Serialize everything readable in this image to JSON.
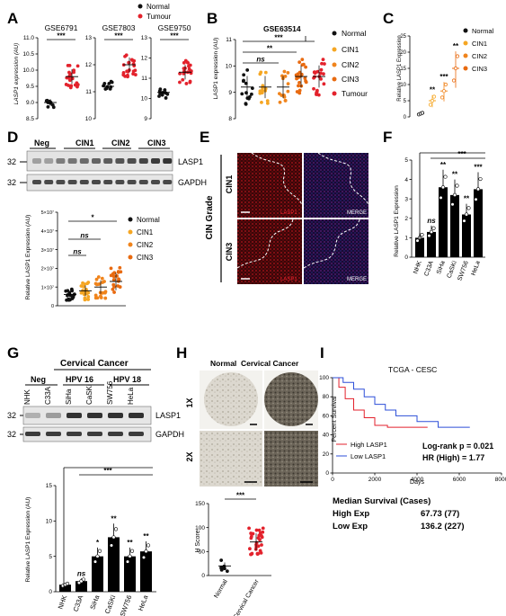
{
  "figure": {
    "panels": {
      "A": {
        "letter": "A",
        "legend": [
          "Normal",
          "Tumour"
        ],
        "ylabel": "LASP1 expression (AU)"
      },
      "B": {
        "letter": "B",
        "title": "GSE63514",
        "ylabel": "LASP1 expression (AU)",
        "legend": [
          "Normal",
          "CIN1",
          "CIN2",
          "CIN3",
          "Tumour"
        ],
        "sig": [
          "***",
          "**",
          "ns"
        ]
      },
      "C": {
        "letter": "C",
        "ylabel": "Relative LASP1 Expression",
        "legend": [
          "Normal",
          "CIN1",
          "CIN2",
          "CIN3"
        ],
        "sig": [
          "**",
          "***",
          "**"
        ]
      },
      "D": {
        "letter": "D",
        "lanes": [
          "Neg",
          "CIN1",
          "CIN2",
          "CIN3"
        ],
        "bands": [
          "LASP1",
          "GAPDH"
        ],
        "mw": [
          "32",
          "32"
        ],
        "ylabel": "Relative LASP1 Expression (AU)",
        "legend": [
          "Normal",
          "CIN1",
          "CIN2",
          "CIN3"
        ],
        "sig": [
          "*",
          "ns",
          "ns"
        ]
      },
      "E": {
        "letter": "E",
        "axis": "CIN Grade",
        "rows": [
          "CIN1",
          "CIN3"
        ],
        "labels": [
          "LASP1",
          "MERGE",
          "LASP1",
          "MERGE"
        ]
      },
      "F": {
        "letter": "F",
        "ylabel": "Relative LASP1 Expression",
        "sig": [
          "ns",
          "**",
          "**",
          "**",
          "**",
          "***",
          "***"
        ]
      },
      "G": {
        "letter": "G",
        "header": "Cervical Cancer",
        "groups": [
          "Neg",
          "HPV 16",
          "HPV 18"
        ],
        "lanes": [
          "NHK",
          "C33A",
          "SiHa",
          "CaSKi",
          "SW756",
          "HeLa"
        ],
        "bands": [
          "LASP1",
          "GAPDH"
        ],
        "mw": [
          "32",
          "32"
        ],
        "ylabel": "Relative LASP1 Expression (AU)",
        "sig": [
          "ns",
          "*",
          "**",
          "**",
          "**",
          "***"
        ]
      },
      "H": {
        "letter": "H",
        "cols": [
          "Normal",
          "Cervical Cancer"
        ],
        "rows": [
          "1X",
          "2X"
        ],
        "ylabel": "H Score",
        "sig": "***",
        "xlabels": [
          "Normal",
          "Cervical Cancer"
        ]
      },
      "I": {
        "letter": "I",
        "title": "TCGA - CESC",
        "ylabel": "Percent Survival",
        "xlabel": "Days",
        "legend": [
          "High LASP1",
          "Low LASP1"
        ],
        "stats": [
          "Log-rank p = 0.021",
          "HR (High) = 1.77"
        ],
        "median_title": "Median Survival (Cases)",
        "median_rows": [
          {
            "label": "High Exp",
            "value": "67.73 (77)"
          },
          {
            "label": "Low Exp",
            "value": "136.2 (227)"
          }
        ]
      }
    }
  },
  "chart_data": [
    {
      "type": "scatter",
      "subplot": "A-GSE6791",
      "title": "GSE6791",
      "ylim": [
        8.5,
        11
      ],
      "yticks": [
        "8.5",
        "9.0",
        "9.5",
        "10.0",
        "10.5",
        "11.0"
      ],
      "series": [
        {
          "name": "Normal",
          "mean": 9.0
        },
        {
          "name": "Tumour",
          "mean": 9.8
        }
      ],
      "sig": "***"
    },
    {
      "type": "scatter",
      "subplot": "A-GSE7803",
      "title": "GSE7803",
      "ylim": [
        10,
        13
      ],
      "yticks": [
        "10",
        "11",
        "12",
        "13"
      ],
      "series": [
        {
          "name": "Normal",
          "mean": 11.2
        },
        {
          "name": "Tumour",
          "mean": 12.0
        }
      ],
      "sig": "***"
    },
    {
      "type": "scatter",
      "subplot": "A-GSE9750",
      "title": "GSE9750",
      "ylim": [
        9,
        13
      ],
      "yticks": [
        "9",
        "10",
        "11",
        "12",
        "13"
      ],
      "series": [
        {
          "name": "Normal",
          "mean": 10.3
        },
        {
          "name": "Tumour",
          "mean": 11.3
        }
      ],
      "sig": "***"
    },
    {
      "type": "scatter",
      "subplot": "B",
      "title": "GSE63514",
      "ylim": [
        8,
        11
      ],
      "yticks": [
        "8",
        "9",
        "10",
        "11"
      ],
      "categories": [
        "Normal",
        "CIN1",
        "CIN2",
        "CIN3",
        "Tumour"
      ],
      "values": [
        9.2,
        9.2,
        9.2,
        9.6,
        9.6
      ]
    },
    {
      "type": "bar",
      "subplot": "C",
      "ylim": [
        0,
        25
      ],
      "yticks": [
        "0",
        "5",
        "10",
        "15",
        "20",
        "25"
      ],
      "categories": [
        "Normal",
        "CIN1",
        "CIN2",
        "CIN3"
      ],
      "values": [
        1,
        5,
        8,
        15
      ]
    },
    {
      "type": "scatter",
      "subplot": "D",
      "ylim": [
        0,
        50000000
      ],
      "yticks": [
        "0",
        "1×10⁷",
        "2×10⁷",
        "3×10⁷",
        "4×10⁷",
        "5×10⁷"
      ],
      "categories": [
        "Normal",
        "CIN1",
        "CIN2",
        "CIN3"
      ],
      "values": [
        6000000,
        8000000,
        10000000,
        13000000
      ]
    },
    {
      "type": "bar",
      "subplot": "F",
      "ylim": [
        0,
        5
      ],
      "yticks": [
        "0",
        "1",
        "2",
        "3",
        "4",
        "5"
      ],
      "categories": [
        "NHK",
        "C33A",
        "SiHa",
        "CaSKi",
        "SW756",
        "HeLa"
      ],
      "values": [
        1.0,
        1.3,
        3.6,
        3.2,
        2.2,
        3.5
      ]
    },
    {
      "type": "bar",
      "subplot": "G",
      "ylim": [
        0,
        15
      ],
      "yticks": [
        "0",
        "5",
        "10",
        "15"
      ],
      "categories": [
        "NHK",
        "C33A",
        "SiHa",
        "CaSKi",
        "SW756",
        "HeLa"
      ],
      "values": [
        1.0,
        1.5,
        5.0,
        7.7,
        5.0,
        5.7
      ]
    },
    {
      "type": "scatter",
      "subplot": "H",
      "ylim": [
        0,
        150
      ],
      "yticks": [
        "0",
        "50",
        "100",
        "150"
      ],
      "categories": [
        "Normal",
        "Cervical Cancer"
      ],
      "values": [
        20,
        70
      ]
    },
    {
      "type": "line",
      "subplot": "I",
      "title": "TCGA - CESC",
      "xlabel": "Days",
      "ylabel": "Percent Survival",
      "xlim": [
        0,
        8000
      ],
      "ylim": [
        0,
        100
      ],
      "xticks": [
        "0",
        "2000",
        "4000",
        "6000",
        "8000"
      ],
      "yticks": [
        "0",
        "20",
        "40",
        "60",
        "80",
        "100"
      ],
      "series": [
        {
          "name": "High LASP1",
          "x": [
            0,
            300,
            600,
            1000,
            1500,
            2000,
            2600,
            4500
          ],
          "y": [
            100,
            90,
            78,
            66,
            58,
            50,
            48,
            48
          ]
        },
        {
          "name": "Low LASP1",
          "x": [
            0,
            500,
            1000,
            1500,
            2000,
            2500,
            3000,
            4000,
            5000,
            6500
          ],
          "y": [
            100,
            95,
            88,
            80,
            72,
            66,
            60,
            54,
            48,
            48
          ]
        }
      ]
    }
  ]
}
